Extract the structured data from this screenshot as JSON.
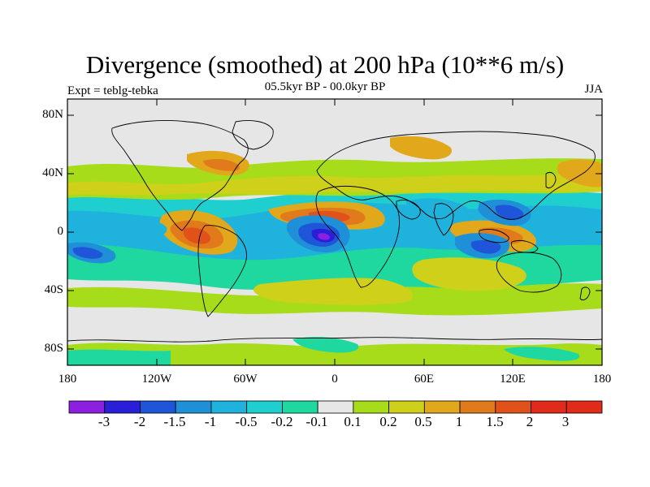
{
  "title": "Divergence (smoothed) at 200 hPa (10**6 m/s)",
  "subtitle_left": "Expt = teblg-tebka",
  "subtitle_center": "05.5kyr BP - 00.0kyr BP",
  "subtitle_right": "JJA",
  "y_axis_labels": [
    "80N",
    "40N",
    "0",
    "40S",
    "80S"
  ],
  "x_axis_labels": [
    "180",
    "120W",
    "60W",
    "0",
    "60E",
    "120E",
    "180"
  ],
  "colorbar": {
    "labels": [
      "-3",
      "-2",
      "-1.5",
      "-1",
      "-0.5",
      "-0.2",
      "-0.1",
      "0.1",
      "0.2",
      "0.5",
      "1",
      "1.5",
      "2",
      "3"
    ],
    "colors": [
      "#8c1fe0",
      "#2a1fd8",
      "#1f55d8",
      "#1f8fd8",
      "#1fb2dc",
      "#1fcfd0",
      "#1fd8a0",
      "#e6e6e6",
      "#a6dc1a",
      "#cfd01a",
      "#e0a81a",
      "#e07a1a",
      "#e0521a",
      "#e02a1a"
    ]
  },
  "map": {
    "lon_range": [
      -180,
      180
    ],
    "lat_range": [
      -90,
      90
    ],
    "field_blobs": [
      {
        "lon": -20,
        "lat": 0,
        "value": -3
      },
      {
        "lon": 110,
        "lat": -10,
        "value": -2
      },
      {
        "lon": 100,
        "lat": 15,
        "value": -1
      },
      {
        "lon": -90,
        "lat": 0,
        "value": 2
      },
      {
        "lon": 10,
        "lat": 12,
        "value": 2
      },
      {
        "lon": 115,
        "lat": 0,
        "value": 1.5
      },
      {
        "lon": -80,
        "lat": 45,
        "value": 1
      },
      {
        "lon": 70,
        "lat": -30,
        "value": 0.5
      }
    ]
  }
}
